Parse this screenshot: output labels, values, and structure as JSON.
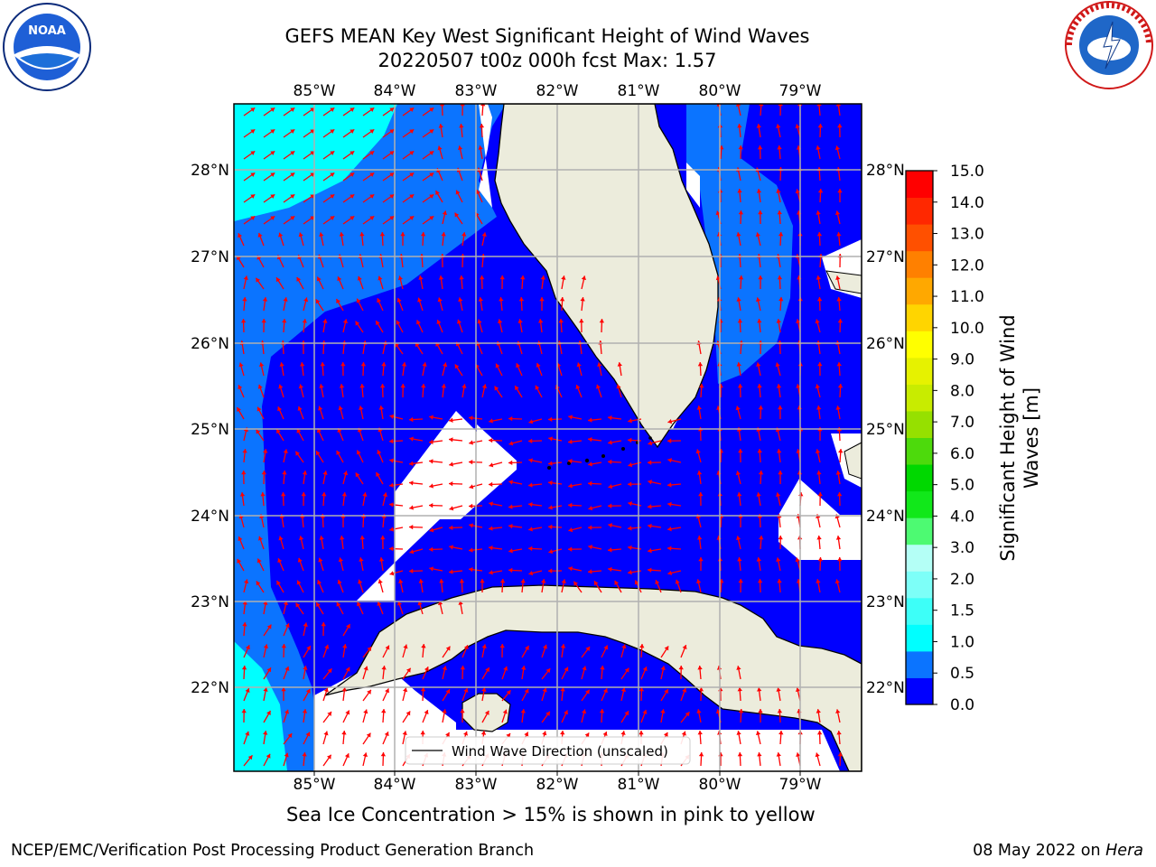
{
  "title_line1": "GEFS MEAN Key West Significant Height of Wind Waves",
  "title_line2": "20220507 t00z 000h fcst   Max: 1.57",
  "caption": "Sea Ice Concentration > 15% is shown in pink to yellow",
  "footer_left": "NCEP/EMC/Verification Post Processing Product Generation Branch",
  "footer_date": "08 May 2022 on ",
  "footer_host": "Hera",
  "legend_label": "Wind Wave Direction (unscaled)",
  "colorbar_label_line1": "Significant Height of Wind",
  "colorbar_label_line2": "Waves [m]",
  "lon_ticks": [
    "85°W",
    "84°W",
    "83°W",
    "82°W",
    "81°W",
    "80°W",
    "79°W"
  ],
  "lat_ticks": [
    "28°N",
    "27°N",
    "26°N",
    "25°N",
    "24°N",
    "23°N",
    "22°N"
  ],
  "colorbar_ticks": [
    "15.0",
    "14.0",
    "13.0",
    "12.0",
    "11.0",
    "10.0",
    "9.0",
    "8.0",
    "7.0",
    "6.0",
    "5.0",
    "4.0",
    "3.0",
    "2.0",
    "1.5",
    "1.0",
    "0.5",
    "0.0"
  ],
  "colorbar_colors": [
    "#0000ff",
    "#0b74ff",
    "#00ffff",
    "#3dfff8",
    "#7dfff8",
    "#b4fff6",
    "#4dfa72",
    "#11e81a",
    "#00d800",
    "#4dda0c",
    "#96e000",
    "#c8ec00",
    "#e6f200",
    "#ffff00",
    "#ffd500",
    "#ffa800",
    "#ff8000",
    "#ff5000",
    "#ff2800",
    "#ff0000"
  ],
  "logos": {
    "noaa": "NOAA",
    "nws": "NATIONAL WEATHER SERVICE"
  }
}
